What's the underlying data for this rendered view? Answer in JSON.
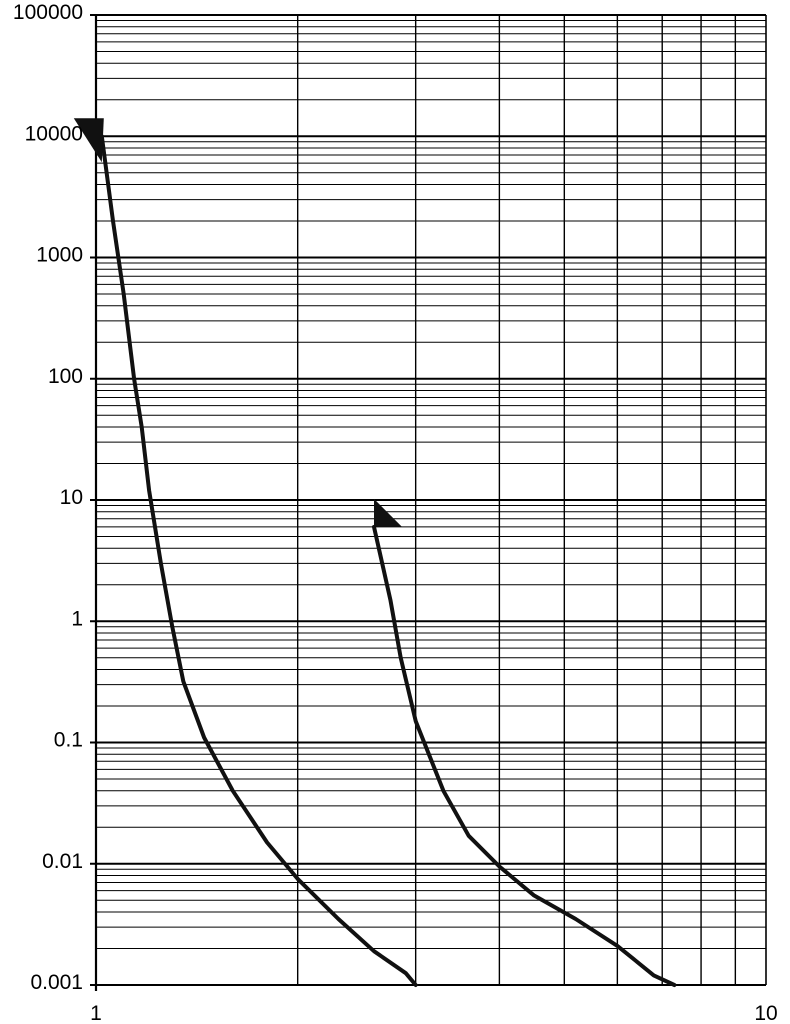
{
  "chart_data": {
    "type": "line",
    "x_scale": "log",
    "y_scale": "log",
    "xlim": [
      1,
      10
    ],
    "ylim": [
      0.001,
      100000
    ],
    "grid": true,
    "legend": "none",
    "title": "",
    "xlabel": "",
    "ylabel": "",
    "x_ticks": [
      {
        "value": 1,
        "label": "1"
      },
      {
        "value": 10,
        "label": "10"
      }
    ],
    "y_ticks": [
      {
        "value": 100000,
        "label": "100000"
      },
      {
        "value": 10000,
        "label": "10000"
      },
      {
        "value": 1000,
        "label": "1000"
      },
      {
        "value": 100,
        "label": "100"
      },
      {
        "value": 10,
        "label": "10"
      },
      {
        "value": 1,
        "label": "1"
      },
      {
        "value": 0.1,
        "label": "0.1"
      },
      {
        "value": 0.01,
        "label": "0.01"
      },
      {
        "value": 0.001,
        "label": "0.001"
      }
    ],
    "series": [
      {
        "color": "#111111",
        "marker_at_start": "arrowhead",
        "points": [
          [
            1.02,
            10000
          ],
          [
            1.06,
            2000
          ],
          [
            1.1,
            500
          ],
          [
            1.14,
            100
          ],
          [
            1.17,
            40
          ],
          [
            1.2,
            12
          ],
          [
            1.25,
            3
          ],
          [
            1.3,
            0.9
          ],
          [
            1.35,
            0.32
          ],
          [
            1.45,
            0.11
          ],
          [
            1.6,
            0.04
          ],
          [
            1.8,
            0.015
          ],
          [
            2.0,
            0.0075
          ],
          [
            2.3,
            0.0035
          ],
          [
            2.6,
            0.0019
          ],
          [
            2.9,
            0.00125
          ],
          [
            3.0,
            0.001
          ]
        ]
      },
      {
        "color": "#111111",
        "marker_at_start": "arrowhead",
        "points": [
          [
            2.6,
            6
          ],
          [
            2.75,
            1.5
          ],
          [
            2.85,
            0.5
          ],
          [
            3.0,
            0.15
          ],
          [
            3.3,
            0.04
          ],
          [
            3.6,
            0.017
          ],
          [
            4.0,
            0.0095
          ],
          [
            4.5,
            0.0055
          ],
          [
            5.2,
            0.0035
          ],
          [
            6.0,
            0.0021
          ],
          [
            6.8,
            0.0012
          ],
          [
            7.3,
            0.001
          ]
        ]
      }
    ]
  }
}
